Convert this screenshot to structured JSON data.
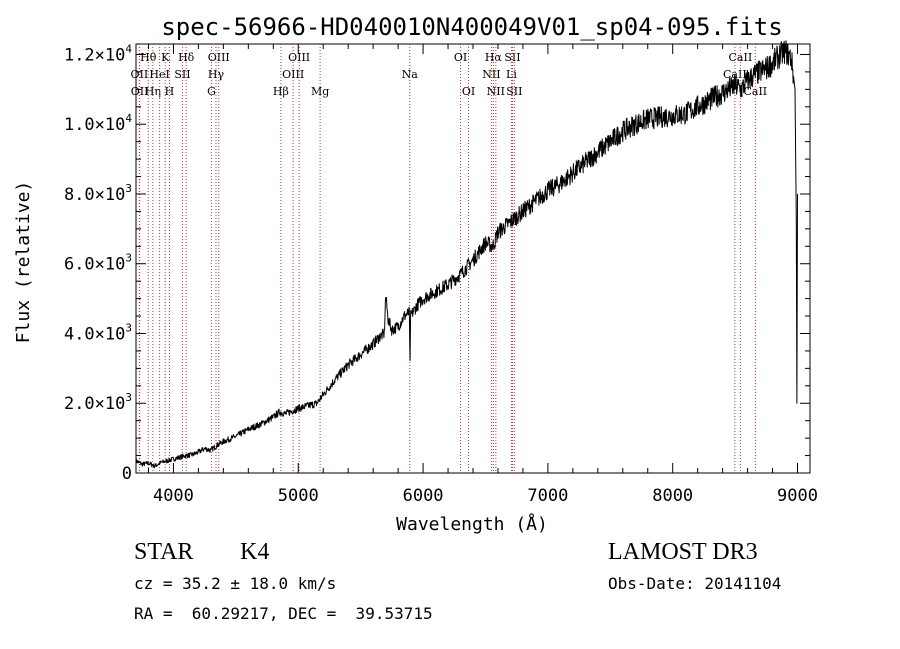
{
  "chart_data": {
    "type": "line",
    "title": "spec-56966-HD040010N400049V01_sp04-095.fits",
    "xlabel": "Wavelength (Å)",
    "ylabel": "Flux (relative)",
    "xlim": [
      3700,
      9100
    ],
    "ylim": [
      0,
      12300
    ],
    "x_ticks": [
      4000,
      5000,
      6000,
      7000,
      8000,
      9000
    ],
    "x_tick_labels": [
      "4000",
      "5000",
      "6000",
      "7000",
      "8000",
      "9000"
    ],
    "y_ticks": [
      0,
      2000,
      4000,
      6000,
      8000,
      10000,
      12000
    ],
    "y_tick_labels": [
      {
        "mant": "0",
        "exp": ""
      },
      {
        "mant": "2.0×10",
        "exp": "3"
      },
      {
        "mant": "4.0×10",
        "exp": "3"
      },
      {
        "mant": "6.0×10",
        "exp": "3"
      },
      {
        "mant": "8.0×10",
        "exp": "3"
      },
      {
        "mant": "1.0×10",
        "exp": "4"
      },
      {
        "mant": "1.2×10",
        "exp": "4"
      }
    ],
    "grid": false,
    "series": [
      {
        "name": "spectrum",
        "x": [
          3700,
          3750,
          3800,
          3850,
          3900,
          3950,
          4000,
          4050,
          4100,
          4150,
          4200,
          4250,
          4300,
          4350,
          4400,
          4500,
          4600,
          4700,
          4800,
          4850,
          4900,
          5000,
          5100,
          5150,
          5200,
          5300,
          5400,
          5500,
          5600,
          5650,
          5690,
          5700,
          5720,
          5750,
          5800,
          5850,
          5890,
          5895,
          5900,
          5950,
          6000,
          6100,
          6200,
          6300,
          6400,
          6500,
          6560,
          6600,
          6700,
          6800,
          6900,
          7000,
          7100,
          7200,
          7300,
          7400,
          7500,
          7600,
          7700,
          7800,
          7900,
          8000,
          8100,
          8200,
          8300,
          8400,
          8500,
          8550,
          8600,
          8650,
          8700,
          8750,
          8800,
          8850,
          8900,
          8950,
          8980,
          8990,
          8995,
          9000
        ],
        "y": [
          350,
          250,
          280,
          200,
          300,
          350,
          400,
          450,
          500,
          520,
          600,
          700,
          650,
          800,
          900,
          1050,
          1250,
          1400,
          1600,
          1750,
          1700,
          1850,
          1950,
          2000,
          2250,
          2700,
          3100,
          3400,
          3700,
          3900,
          4000,
          5100,
          4400,
          4100,
          4200,
          4500,
          4600,
          3000,
          4500,
          4800,
          5000,
          5200,
          5400,
          5700,
          6100,
          6600,
          6500,
          6900,
          7200,
          7500,
          7800,
          8100,
          8300,
          8600,
          8900,
          9200,
          9500,
          9800,
          10000,
          10150,
          10200,
          10250,
          10300,
          10500,
          10700,
          10900,
          11100,
          11000,
          11250,
          11400,
          11500,
          11600,
          11750,
          11950,
          12100,
          11900,
          11000,
          7200,
          2000,
          8000
        ]
      }
    ],
    "line_markers": [
      {
        "name": "Hθ",
        "wl": 3798,
        "row": 0
      },
      {
        "name": "OII",
        "wl": 3727,
        "row": 1
      },
      {
        "name": "OII",
        "wl": 3729,
        "row": 2
      },
      {
        "name": "Hη",
        "wl": 3835,
        "row": 2
      },
      {
        "name": "HeI",
        "wl": 3889,
        "row": 1
      },
      {
        "name": "K",
        "wl": 3934,
        "row": 0
      },
      {
        "name": "H",
        "wl": 3968,
        "row": 2
      },
      {
        "name": "SII",
        "wl": 4072,
        "row": 1
      },
      {
        "name": "Hδ",
        "wl": 4102,
        "row": 0
      },
      {
        "name": "OIII",
        "wl": 4363,
        "row": 0
      },
      {
        "name": "Hγ",
        "wl": 4341,
        "row": 1
      },
      {
        "name": "G",
        "wl": 4305,
        "row": 2
      },
      {
        "name": "Hβ",
        "wl": 4861,
        "row": 2
      },
      {
        "name": "OIII",
        "wl": 4959,
        "row": 1
      },
      {
        "name": "OIII",
        "wl": 5007,
        "row": 0
      },
      {
        "name": "Mg",
        "wl": 5175,
        "row": 2
      },
      {
        "name": "Na",
        "wl": 5893,
        "row": 1
      },
      {
        "name": "OI",
        "wl": 6300,
        "row": 0
      },
      {
        "name": "OI",
        "wl": 6364,
        "row": 2
      },
      {
        "name": "NII",
        "wl": 6548,
        "row": 1
      },
      {
        "name": "Hα",
        "wl": 6563,
        "row": 0
      },
      {
        "name": "NII",
        "wl": 6583,
        "row": 2
      },
      {
        "name": "Li",
        "wl": 6708,
        "row": 1
      },
      {
        "name": "SII",
        "wl": 6716,
        "row": 0
      },
      {
        "name": "SII",
        "wl": 6731,
        "row": 2
      },
      {
        "name": "CaII",
        "wl": 8498,
        "row": 1
      },
      {
        "name": "CaII",
        "wl": 8542,
        "row": 0
      },
      {
        "name": "CaII",
        "wl": 8662,
        "row": 2
      }
    ]
  },
  "info": {
    "object_class": "STAR",
    "subclass": "K4",
    "survey": "LAMOST DR3",
    "redshift": "cz = 35.2 ± 18.0 km/s",
    "obs_date": "Obs-Date: 20141104",
    "coords": "RA =  60.29217, DEC =  39.53715"
  },
  "colors": {
    "spectrum": "#000000",
    "marker_line": "#c83232",
    "axis": "#000000"
  }
}
